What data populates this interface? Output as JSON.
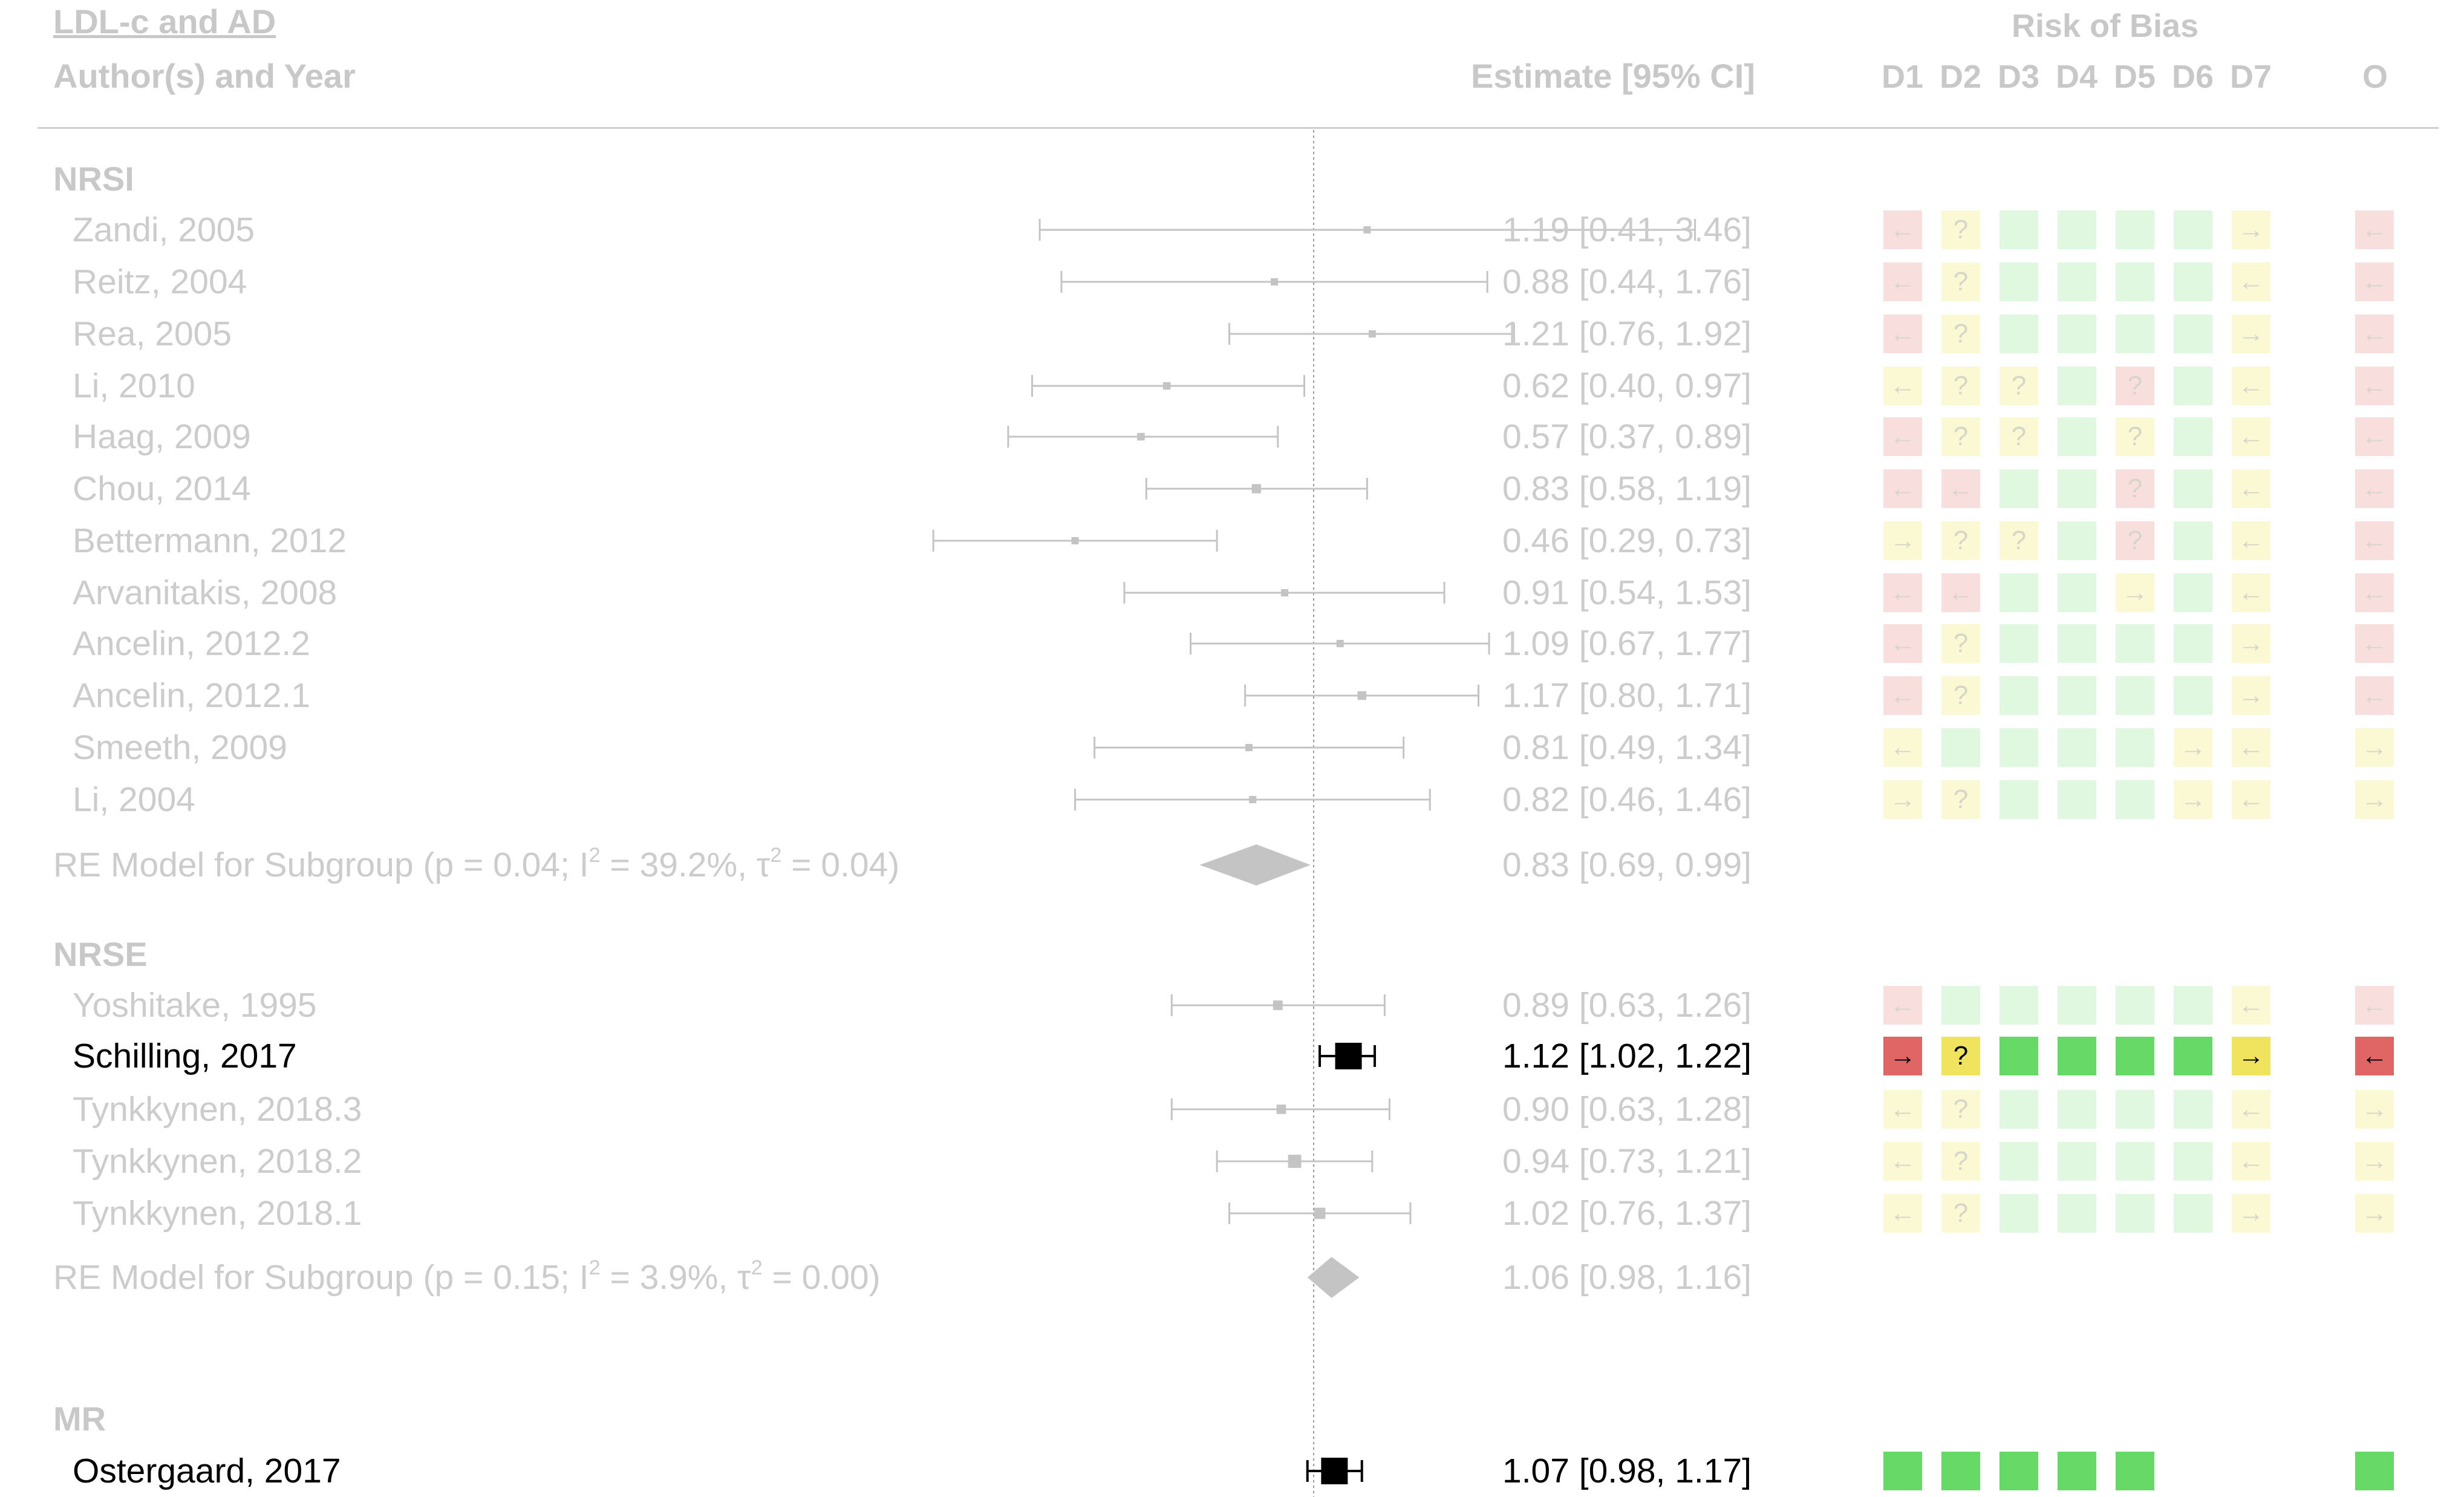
{
  "title": "LDL-c and AD",
  "col_headers": {
    "author": "Author(s) and Year",
    "estimate": "Estimate [95% CI]"
  },
  "rob": {
    "title": "Risk of Bias",
    "domains": [
      "D1",
      "D2",
      "D3",
      "D4",
      "D5",
      "D6",
      "D7"
    ],
    "overall": "O"
  },
  "colors": {
    "high": "#e06666",
    "some": "#f0e35e",
    "low": "#66d966",
    "high_faded": "#f9dede",
    "some_faded": "#fbf8d4",
    "low_faded": "#e0f7e0",
    "faded_text": "#cccccc",
    "highlight_text": "#000000"
  },
  "symbols": {
    "high": "←",
    "moderate": "→",
    "unclear": "?",
    "low": ""
  },
  "chart_data": {
    "type": "forest",
    "title": "LDL-c and AD",
    "reference_line": 1,
    "x_scale": "log",
    "subgroups": [
      {
        "label": "NRSI",
        "studies": [
          {
            "name": "Zandi, 2005",
            "est": 1.19,
            "lo": 0.41,
            "hi": 3.46,
            "text": "1.19 [0.41, 3.46]",
            "highlight": false,
            "rob": [
              "high",
              "unclear",
              "low",
              "low",
              "low",
              "low",
              "moderate"
            ],
            "overall": "high"
          },
          {
            "name": "Reitz, 2004",
            "est": 0.88,
            "lo": 0.44,
            "hi": 1.76,
            "text": "0.88 [0.44, 1.76]",
            "highlight": false,
            "rob": [
              "high",
              "unclear",
              "low",
              "low",
              "low",
              "low",
              "high-y"
            ],
            "overall": "high"
          },
          {
            "name": "Rea, 2005",
            "est": 1.21,
            "lo": 0.76,
            "hi": 1.92,
            "text": "1.21 [0.76, 1.92]",
            "highlight": false,
            "rob": [
              "high",
              "unclear",
              "low",
              "low",
              "low",
              "low",
              "moderate"
            ],
            "overall": "high"
          },
          {
            "name": "Li, 2010",
            "est": 0.62,
            "lo": 0.4,
            "hi": 0.97,
            "text": "0.62 [0.40, 0.97]",
            "highlight": false,
            "rob": [
              "high-y",
              "unclear",
              "unclear",
              "low",
              "unclear-r",
              "low",
              "high-y"
            ],
            "overall": "high"
          },
          {
            "name": "Haag, 2009",
            "est": 0.57,
            "lo": 0.37,
            "hi": 0.89,
            "text": "0.57 [0.37, 0.89]",
            "highlight": false,
            "rob": [
              "high",
              "unclear",
              "unclear",
              "low",
              "unclear",
              "low",
              "high-y"
            ],
            "overall": "high"
          },
          {
            "name": "Chou, 2014",
            "est": 0.83,
            "lo": 0.58,
            "hi": 1.19,
            "text": "0.83 [0.58, 1.19]",
            "highlight": false,
            "rob": [
              "high",
              "high",
              "low",
              "low",
              "unclear-r",
              "low",
              "high-y"
            ],
            "overall": "high"
          },
          {
            "name": "Bettermann, 2012",
            "est": 0.46,
            "lo": 0.29,
            "hi": 0.73,
            "text": "0.46 [0.29, 0.73]",
            "highlight": false,
            "rob": [
              "moderate",
              "unclear",
              "unclear",
              "low",
              "unclear-r",
              "low",
              "high-y"
            ],
            "overall": "high"
          },
          {
            "name": "Arvanitakis, 2008",
            "est": 0.91,
            "lo": 0.54,
            "hi": 1.53,
            "text": "0.91 [0.54, 1.53]",
            "highlight": false,
            "rob": [
              "high",
              "high",
              "low",
              "low",
              "moderate",
              "low",
              "high-y"
            ],
            "overall": "high"
          },
          {
            "name": "Ancelin, 2012.2",
            "est": 1.09,
            "lo": 0.67,
            "hi": 1.77,
            "text": "1.09 [0.67, 1.77]",
            "highlight": false,
            "rob": [
              "high",
              "unclear",
              "low",
              "low",
              "low",
              "low",
              "moderate"
            ],
            "overall": "high"
          },
          {
            "name": "Ancelin, 2012.1",
            "est": 1.17,
            "lo": 0.8,
            "hi": 1.71,
            "text": "1.17 [0.80, 1.71]",
            "highlight": false,
            "rob": [
              "high",
              "unclear",
              "low",
              "low",
              "low",
              "low",
              "moderate"
            ],
            "overall": "high"
          },
          {
            "name": "Smeeth, 2009",
            "est": 0.81,
            "lo": 0.49,
            "hi": 1.34,
            "text": "0.81 [0.49, 1.34]",
            "highlight": false,
            "rob": [
              "high-y",
              "low",
              "low",
              "low",
              "low",
              "moderate",
              "high-y"
            ],
            "overall": "some"
          },
          {
            "name": "Li, 2004",
            "est": 0.82,
            "lo": 0.46,
            "hi": 1.46,
            "text": "0.82 [0.46, 1.46]",
            "highlight": false,
            "rob": [
              "moderate",
              "unclear",
              "low",
              "low",
              "low",
              "moderate",
              "high-y"
            ],
            "overall": "some"
          }
        ],
        "model": {
          "label": "RE Model for Subgroup (p = 0.04; I",
          "sq1": "2",
          "mid": " = 39.2%, τ",
          "sq2": "2",
          "end": " = 0.04)",
          "est": 0.83,
          "lo": 0.69,
          "hi": 0.99,
          "text": "0.83 [0.69, 0.99]"
        }
      },
      {
        "label": "NRSE",
        "studies": [
          {
            "name": "Yoshitake, 1995",
            "est": 0.89,
            "lo": 0.63,
            "hi": 1.26,
            "text": "0.89 [0.63, 1.26]",
            "highlight": false,
            "rob": [
              "high",
              "low",
              "low",
              "low",
              "low",
              "low",
              "high-y"
            ],
            "overall": "high"
          },
          {
            "name": "Schilling, 2017",
            "est": 1.12,
            "lo": 1.02,
            "hi": 1.22,
            "text": "1.12 [1.02, 1.22]",
            "highlight": true,
            "rob": [
              "moderate-r",
              "unclear",
              "low",
              "low",
              "low",
              "low",
              "moderate"
            ],
            "overall": "high"
          },
          {
            "name": "Tynkkynen, 2018.3",
            "est": 0.9,
            "lo": 0.63,
            "hi": 1.28,
            "text": "0.90 [0.63, 1.28]",
            "highlight": false,
            "rob": [
              "high-y",
              "unclear",
              "low",
              "low",
              "low",
              "low",
              "high-y"
            ],
            "overall": "some"
          },
          {
            "name": "Tynkkynen, 2018.2",
            "est": 0.94,
            "lo": 0.73,
            "hi": 1.21,
            "text": "0.94 [0.73, 1.21]",
            "highlight": false,
            "rob": [
              "high-y",
              "unclear",
              "low",
              "low",
              "low",
              "low",
              "high-y"
            ],
            "overall": "some"
          },
          {
            "name": "Tynkkynen, 2018.1",
            "est": 1.02,
            "lo": 0.76,
            "hi": 1.37,
            "text": "1.02 [0.76, 1.37]",
            "highlight": false,
            "rob": [
              "high-y",
              "unclear",
              "low",
              "low",
              "low",
              "low",
              "moderate"
            ],
            "overall": "some"
          }
        ],
        "model": {
          "label": "RE Model for Subgroup (p = 0.15; I",
          "sq1": "2",
          "mid": " = 3.9%, τ",
          "sq2": "2",
          "end": " = 0.00)",
          "est": 1.06,
          "lo": 0.98,
          "hi": 1.16,
          "text": "1.06 [0.98, 1.16]"
        }
      },
      {
        "label": "MR",
        "studies": [
          {
            "name": "Ostergaard, 2017",
            "est": 1.07,
            "lo": 0.98,
            "hi": 1.17,
            "text": "1.07 [0.98, 1.17]",
            "highlight": true,
            "rob": [
              "low",
              "low",
              "low",
              "low",
              "low",
              "none",
              "none"
            ],
            "overall": "low"
          }
        ]
      }
    ]
  }
}
